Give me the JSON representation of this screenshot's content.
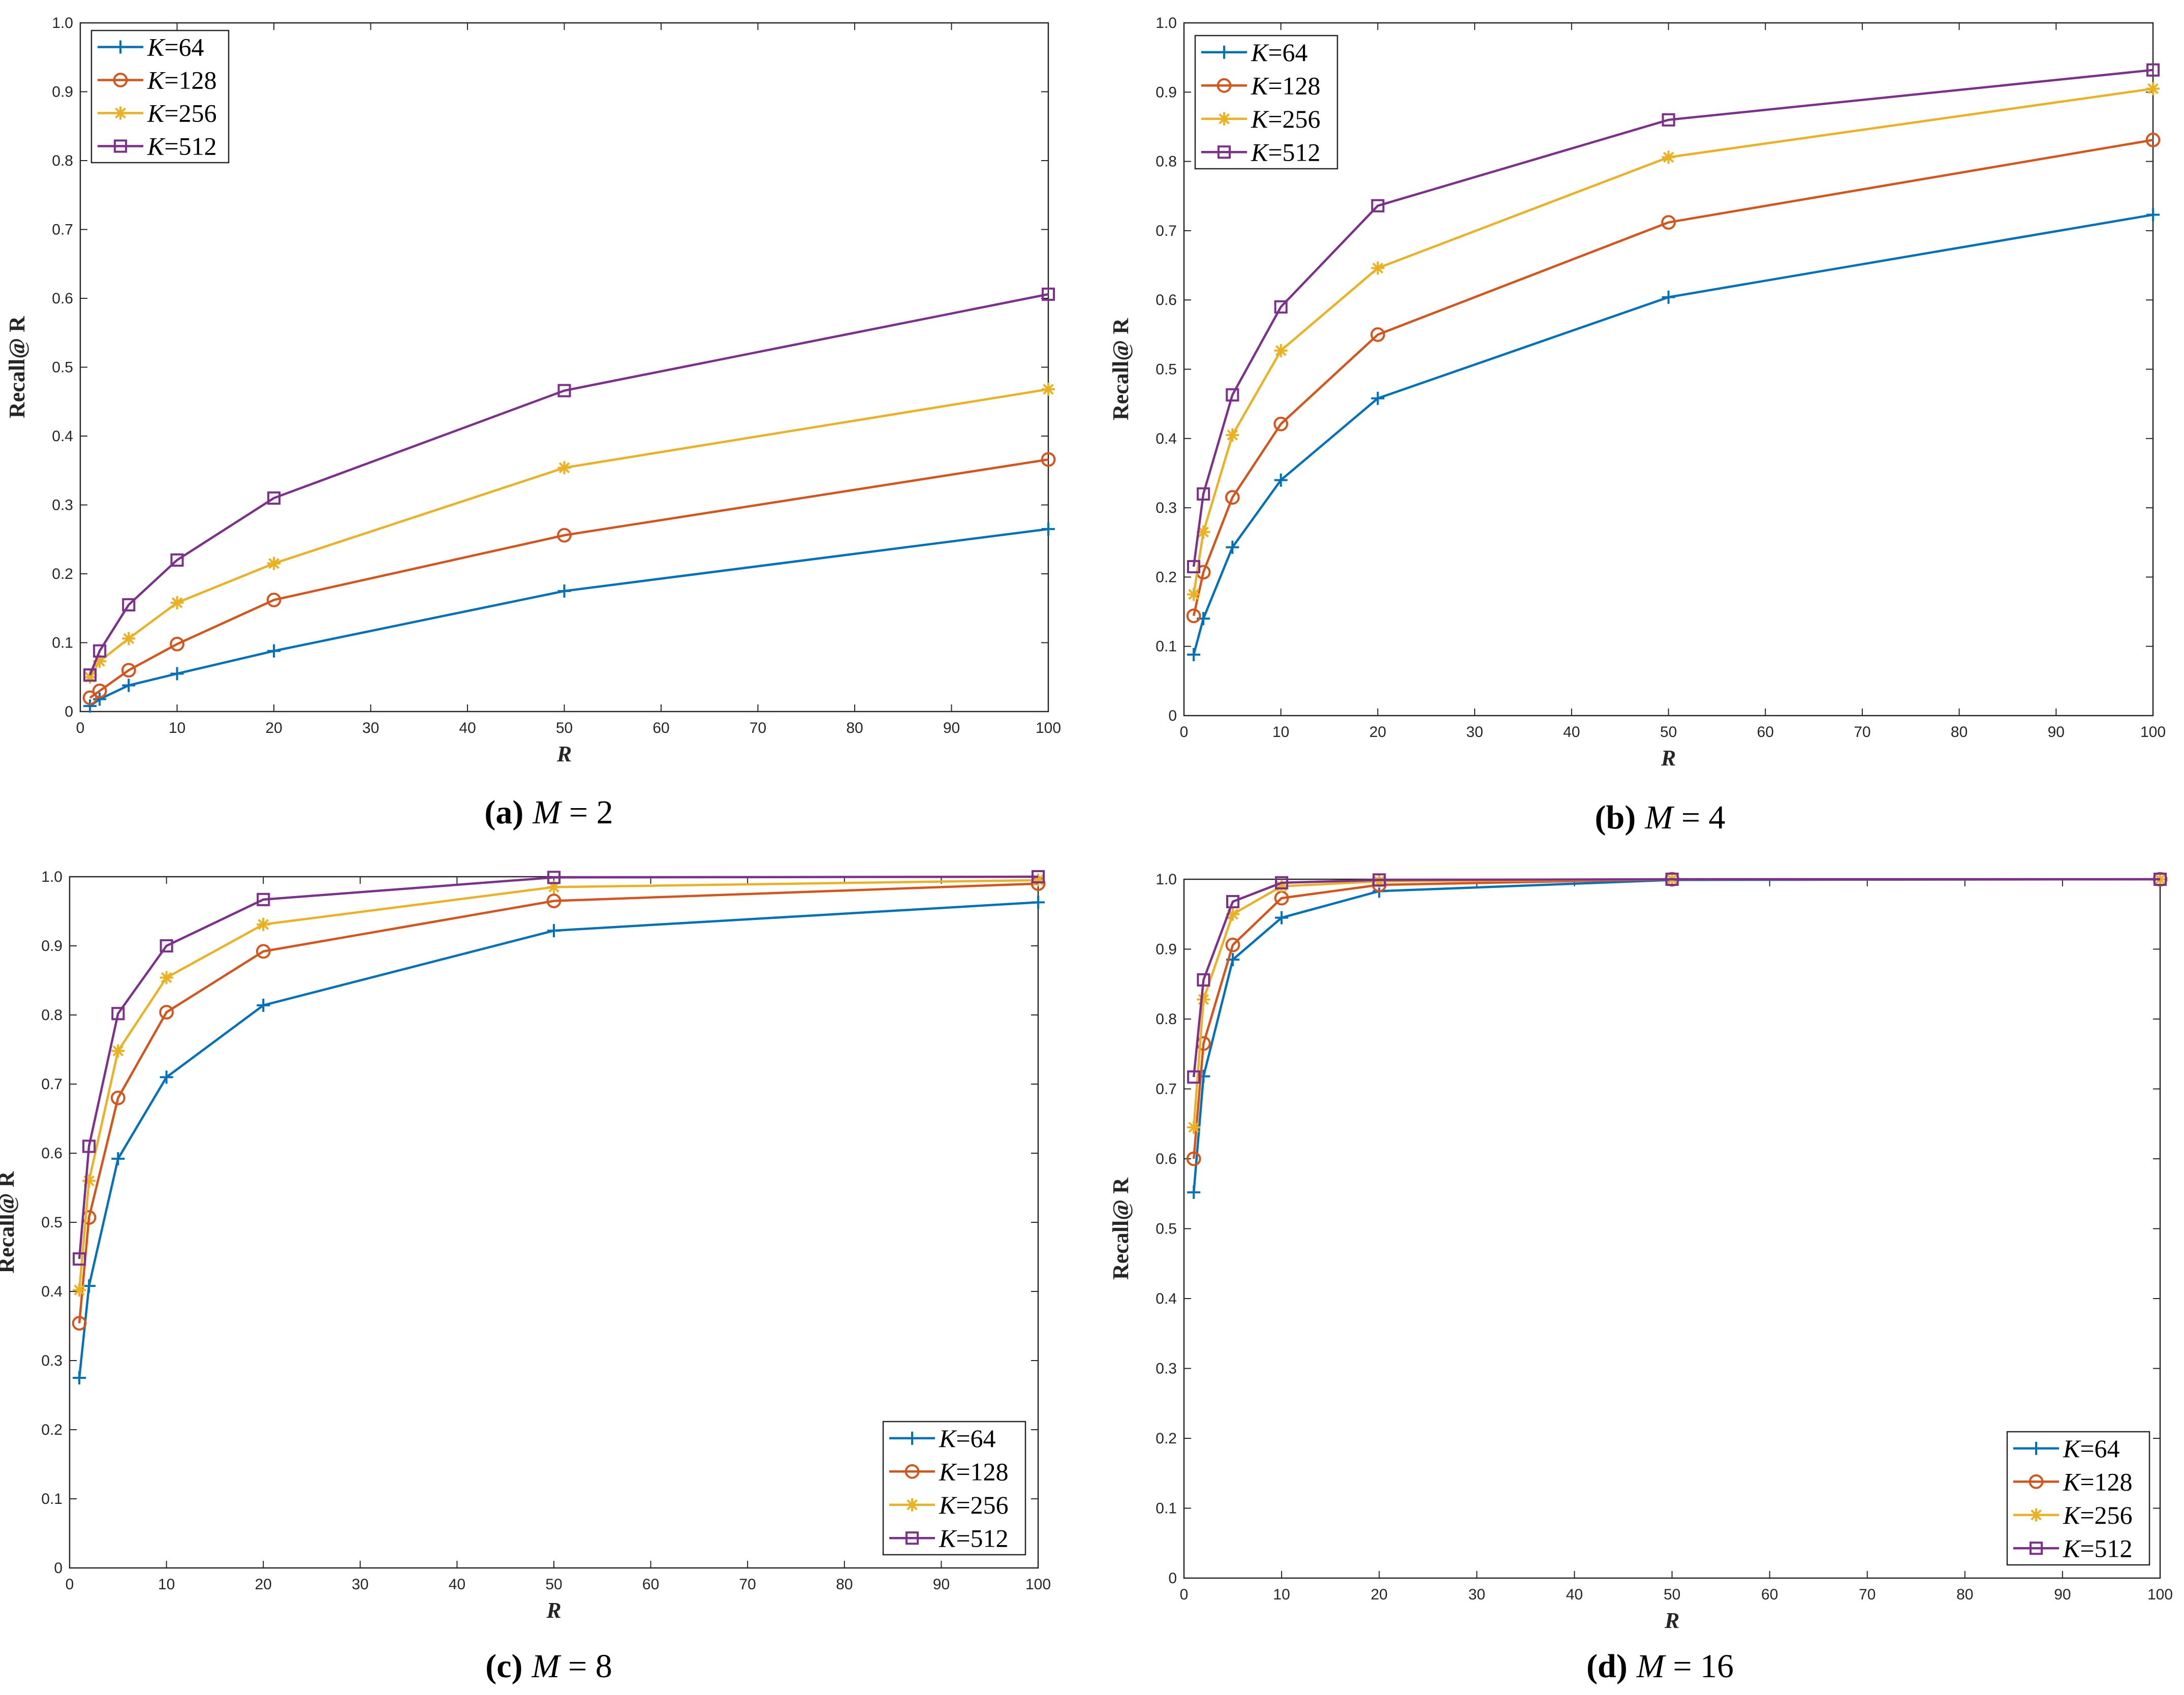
{
  "chart_data": [
    {
      "type": "line",
      "caption": {
        "letter": "(a)",
        "var": "M",
        "rel": " = 2"
      },
      "xlabel": "R",
      "ylabel": "Recall@ R",
      "xlim": [
        0,
        100
      ],
      "ylim": [
        0,
        1
      ],
      "grid": false,
      "legend_position": "top-left",
      "x": [
        1,
        2,
        5,
        10,
        20,
        50,
        100
      ],
      "series": [
        {
          "name": "K=64",
          "key": "K",
          "num": "=64",
          "color": "#0072BD",
          "marker": "plus",
          "values": [
            0.008,
            0.018,
            0.038,
            0.055,
            0.088,
            0.175,
            0.265
          ]
        },
        {
          "name": "K=128",
          "key": "K",
          "num": "=128",
          "color": "#D95319",
          "marker": "circle",
          "values": [
            0.02,
            0.03,
            0.06,
            0.098,
            0.162,
            0.256,
            0.366
          ]
        },
        {
          "name": "K=256",
          "key": "K",
          "num": "=256",
          "color": "#EDB120",
          "marker": "asterisk",
          "values": [
            0.05,
            0.073,
            0.106,
            0.158,
            0.215,
            0.354,
            0.468
          ]
        },
        {
          "name": "K=512",
          "key": "K",
          "num": "=512",
          "color": "#7E2F8E",
          "marker": "square",
          "values": [
            0.053,
            0.088,
            0.155,
            0.22,
            0.31,
            0.466,
            0.606
          ]
        }
      ]
    },
    {
      "type": "line",
      "caption": {
        "letter": "(b)",
        "var": "M",
        "rel": " = 4"
      },
      "xlabel": "R",
      "ylabel": "Recall@ R",
      "xlim": [
        0,
        100
      ],
      "ylim": [
        0,
        1
      ],
      "grid": false,
      "legend_position": "top-left",
      "x": [
        1,
        2,
        5,
        10,
        20,
        50,
        100
      ],
      "series": [
        {
          "name": "K=64",
          "key": "K",
          "num": "=64",
          "color": "#0072BD",
          "marker": "plus",
          "values": [
            0.088,
            0.14,
            0.243,
            0.34,
            0.458,
            0.604,
            0.723
          ]
        },
        {
          "name": "K=128",
          "key": "K",
          "num": "=128",
          "color": "#D95319",
          "marker": "circle",
          "values": [
            0.144,
            0.207,
            0.315,
            0.421,
            0.55,
            0.712,
            0.831
          ]
        },
        {
          "name": "K=256",
          "key": "K",
          "num": "=256",
          "color": "#EDB120",
          "marker": "asterisk",
          "values": [
            0.175,
            0.265,
            0.405,
            0.527,
            0.646,
            0.806,
            0.905
          ]
        },
        {
          "name": "K=512",
          "key": "K",
          "num": "=512",
          "color": "#7E2F8E",
          "marker": "square",
          "values": [
            0.215,
            0.32,
            0.463,
            0.59,
            0.736,
            0.86,
            0.932
          ]
        }
      ]
    },
    {
      "type": "line",
      "caption": {
        "letter": "(c)",
        "var": "M",
        "rel": " = 8"
      },
      "xlabel": "R",
      "ylabel": "Recall@ R",
      "xlim": [
        0,
        100
      ],
      "ylim": [
        0,
        1
      ],
      "grid": false,
      "legend_position": "bottom-right",
      "x": [
        1,
        2,
        5,
        10,
        20,
        50,
        100
      ],
      "series": [
        {
          "name": "K=64",
          "key": "K",
          "num": "=64",
          "color": "#0072BD",
          "marker": "plus",
          "values": [
            0.275,
            0.408,
            0.592,
            0.71,
            0.814,
            0.922,
            0.963
          ]
        },
        {
          "name": "K=128",
          "key": "K",
          "num": "=128",
          "color": "#D95319",
          "marker": "circle",
          "values": [
            0.354,
            0.507,
            0.68,
            0.804,
            0.892,
            0.965,
            0.99
          ]
        },
        {
          "name": "K=256",
          "key": "K",
          "num": "=256",
          "color": "#EDB120",
          "marker": "asterisk",
          "values": [
            0.402,
            0.56,
            0.748,
            0.854,
            0.931,
            0.985,
            0.995
          ]
        },
        {
          "name": "K=512",
          "key": "K",
          "num": "=512",
          "color": "#7E2F8E",
          "marker": "square",
          "values": [
            0.447,
            0.61,
            0.802,
            0.9,
            0.967,
            0.999,
            1.0
          ]
        }
      ]
    },
    {
      "type": "line",
      "caption": {
        "letter": "(d)",
        "var": "M",
        "rel": " = 16"
      },
      "xlabel": "R",
      "ylabel": "Recall@ R",
      "xlim": [
        0,
        100
      ],
      "ylim": [
        0,
        1
      ],
      "grid": false,
      "legend_position": "bottom-right",
      "x": [
        1,
        2,
        5,
        10,
        20,
        50,
        100
      ],
      "series": [
        {
          "name": "K=64",
          "key": "K",
          "num": "=64",
          "color": "#0072BD",
          "marker": "plus",
          "values": [
            0.552,
            0.718,
            0.885,
            0.945,
            0.983,
            0.999,
            1.0
          ]
        },
        {
          "name": "K=128",
          "key": "K",
          "num": "=128",
          "color": "#D95319",
          "marker": "circle",
          "values": [
            0.6,
            0.765,
            0.906,
            0.973,
            0.992,
            1.0,
            1.0
          ]
        },
        {
          "name": "K=256",
          "key": "K",
          "num": "=256",
          "color": "#EDB120",
          "marker": "asterisk",
          "values": [
            0.645,
            0.828,
            0.95,
            0.99,
            0.997,
            1.0,
            1.0
          ]
        },
        {
          "name": "K=512",
          "key": "K",
          "num": "=512",
          "color": "#7E2F8E",
          "marker": "square",
          "values": [
            0.717,
            0.856,
            0.968,
            0.995,
            0.999,
            1.0,
            1.0
          ]
        }
      ]
    }
  ],
  "ticks": {
    "x": [
      "0",
      "10",
      "20",
      "30",
      "40",
      "50",
      "60",
      "70",
      "80",
      "90",
      "100"
    ],
    "y": [
      "0",
      "0.1",
      "0.2",
      "0.3",
      "0.4",
      "0.5",
      "0.6",
      "0.7",
      "0.8",
      "0.9",
      "1.0"
    ]
  }
}
